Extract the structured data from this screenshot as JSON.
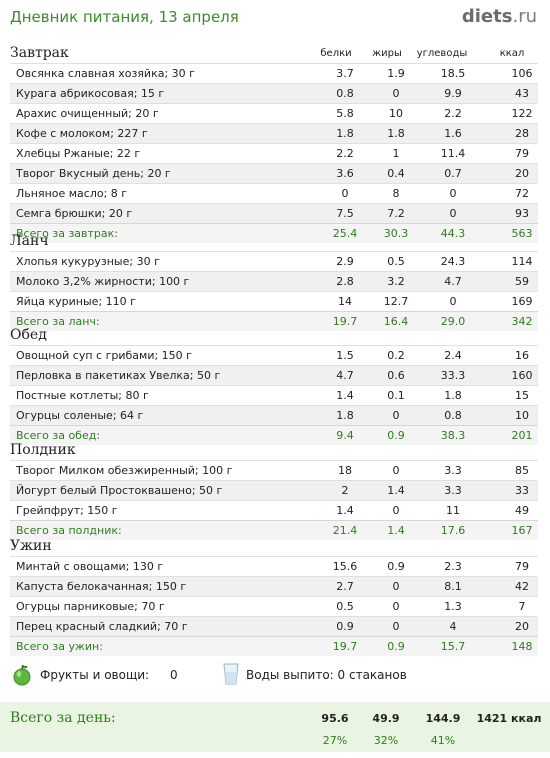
{
  "header": {
    "title": "Дневник питания, 13 апреля",
    "logo_main": "diets",
    "logo_tld": ".ru"
  },
  "columns": [
    "белки",
    "жиры",
    "углеводы",
    "ккал"
  ],
  "sections": [
    {
      "title": "Завтрак",
      "rows": [
        {
          "name": "Овсянка славная хозяйка; 30 г",
          "v": [
            "3.7",
            "1.9",
            "18.5",
            "106"
          ]
        },
        {
          "name": "Курага абрикосовая; 15 г",
          "v": [
            "0.8",
            "0",
            "9.9",
            "43"
          ]
        },
        {
          "name": "Арахис очищенный; 20 г",
          "v": [
            "5.8",
            "10",
            "2.2",
            "122"
          ]
        },
        {
          "name": "Кофе с молоком; 227 г",
          "v": [
            "1.8",
            "1.8",
            "1.6",
            "28"
          ]
        },
        {
          "name": "Хлебцы Ржаные; 22 г",
          "v": [
            "2.2",
            "1",
            "11.4",
            "79"
          ]
        },
        {
          "name": "Творог Вкусный день; 20 г",
          "v": [
            "3.6",
            "0.4",
            "0.7",
            "20"
          ]
        },
        {
          "name": "Льняное масло; 8 г",
          "v": [
            "0",
            "8",
            "0",
            "72"
          ]
        },
        {
          "name": "Семга брюшки; 20 г",
          "v": [
            "7.5",
            "7.2",
            "0",
            "93"
          ]
        }
      ],
      "total": {
        "name": "Всего за завтрак:",
        "v": [
          "25.4",
          "30.3",
          "44.3",
          "563"
        ]
      }
    },
    {
      "title": "Ланч",
      "rows": [
        {
          "name": "Хлопья кукурузные; 30 г",
          "v": [
            "2.9",
            "0.5",
            "24.3",
            "114"
          ]
        },
        {
          "name": "Молоко 3,2% жирности; 100 г",
          "v": [
            "2.8",
            "3.2",
            "4.7",
            "59"
          ]
        },
        {
          "name": "Яйца куриные; 110 г",
          "v": [
            "14",
            "12.7",
            "0",
            "169"
          ]
        }
      ],
      "total": {
        "name": "Всего за ланч:",
        "v": [
          "19.7",
          "16.4",
          "29.0",
          "342"
        ]
      }
    },
    {
      "title": "Обед",
      "rows": [
        {
          "name": "Овощной суп с грибами; 150 г",
          "v": [
            "1.5",
            "0.2",
            "2.4",
            "16"
          ]
        },
        {
          "name": "Перловка в пакетиках Увелка; 50 г",
          "v": [
            "4.7",
            "0.6",
            "33.3",
            "160"
          ]
        },
        {
          "name": "Постные котлеты; 80 г",
          "v": [
            "1.4",
            "0.1",
            "1.8",
            "15"
          ]
        },
        {
          "name": "Огурцы соленые; 64 г",
          "v": [
            "1.8",
            "0",
            "0.8",
            "10"
          ]
        }
      ],
      "total": {
        "name": "Всего за обед:",
        "v": [
          "9.4",
          "0.9",
          "38.3",
          "201"
        ]
      }
    },
    {
      "title": "Полдник",
      "rows": [
        {
          "name": "Творог Милком обезжиренный; 100 г",
          "v": [
            "18",
            "0",
            "3.3",
            "85"
          ]
        },
        {
          "name": "Йогурт белый Простоквашено; 50 г",
          "v": [
            "2",
            "1.4",
            "3.3",
            "33"
          ]
        },
        {
          "name": "Грейпфрут; 150 г",
          "v": [
            "1.4",
            "0",
            "11",
            "49"
          ]
        }
      ],
      "total": {
        "name": "Всего за полдник:",
        "v": [
          "21.4",
          "1.4",
          "17.6",
          "167"
        ]
      }
    },
    {
      "title": "Ужин",
      "rows": [
        {
          "name": "Минтай с овощами; 130 г",
          "v": [
            "15.6",
            "0.9",
            "2.3",
            "79"
          ]
        },
        {
          "name": "Капуста белокачанная; 150 г",
          "v": [
            "2.7",
            "0",
            "8.1",
            "42"
          ]
        },
        {
          "name": "Огурцы парниковые; 70 г",
          "v": [
            "0.5",
            "0",
            "1.3",
            "7"
          ]
        },
        {
          "name": "Перец красный сладкий; 70 г",
          "v": [
            "0.9",
            "0",
            "4",
            "20"
          ]
        }
      ],
      "total": {
        "name": "Всего за ужин:",
        "v": [
          "19.7",
          "0.9",
          "15.7",
          "148"
        ]
      }
    }
  ],
  "extras": {
    "fruits_label": "Фрукты и овощи:",
    "fruits_value": "0",
    "water_label": "Воды выпито: 0 стаканов"
  },
  "day_total": {
    "label": "Всего за день:",
    "values": [
      "95.6",
      "49.9",
      "144.9",
      "1421 ккал"
    ],
    "percents": [
      "27%",
      "32%",
      "41%"
    ]
  }
}
